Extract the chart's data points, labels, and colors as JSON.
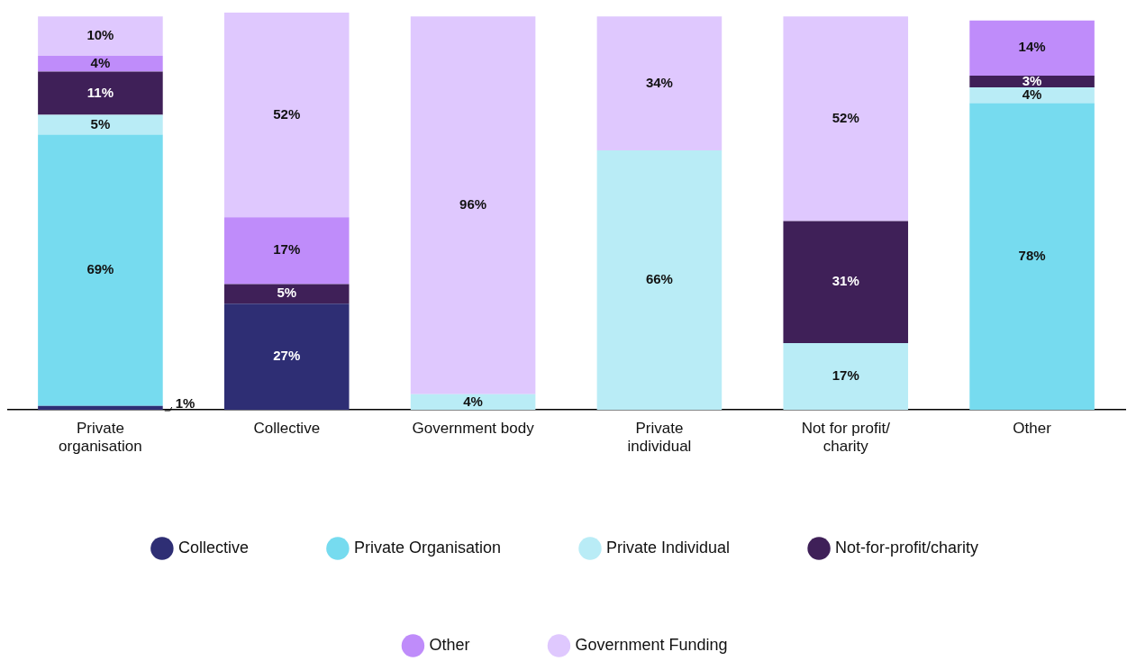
{
  "chart_data": {
    "type": "bar",
    "stacked": true,
    "legend": "bottom",
    "tick_labels": "x",
    "categories": [
      "Private organisation",
      "Collective",
      "Government body",
      "Private individual",
      "Not for profit/ charity",
      "Other"
    ],
    "series": [
      {
        "name": "Collective",
        "color": "#2e2e74",
        "values": [
          1,
          27,
          null,
          null,
          null,
          null
        ],
        "value_labels": [
          "1%",
          "27%",
          null,
          null,
          null,
          null
        ]
      },
      {
        "name": "Private Organisation",
        "color": "#76dbef",
        "values": [
          69,
          null,
          null,
          null,
          null,
          78
        ],
        "value_labels": [
          "69%",
          null,
          null,
          null,
          null,
          "78%"
        ]
      },
      {
        "name": "Private Individual",
        "color": "#b9ecf6",
        "values": [
          5,
          null,
          4,
          66,
          17,
          4
        ],
        "value_labels": [
          "5%",
          null,
          "4%",
          "66%",
          "17%",
          "4%"
        ]
      },
      {
        "name": "Not-for-profit/charity",
        "color": "#3f2058",
        "values": [
          11,
          5,
          null,
          null,
          31,
          3
        ],
        "value_labels": [
          "11%",
          "5%",
          null,
          null,
          "31%",
          "3%"
        ]
      },
      {
        "name": "Other",
        "color": "#bf8cfa",
        "values": [
          4,
          17,
          null,
          null,
          null,
          14
        ],
        "value_labels": [
          "4%",
          "17%",
          null,
          null,
          null,
          "14%"
        ]
      },
      {
        "name": "Government Funding",
        "color": "#dfc8fe",
        "values": [
          10,
          52,
          96,
          34,
          52,
          null
        ],
        "value_labels": [
          "10%",
          "52%",
          "96%",
          "34%",
          "52%",
          null
        ]
      }
    ]
  }
}
